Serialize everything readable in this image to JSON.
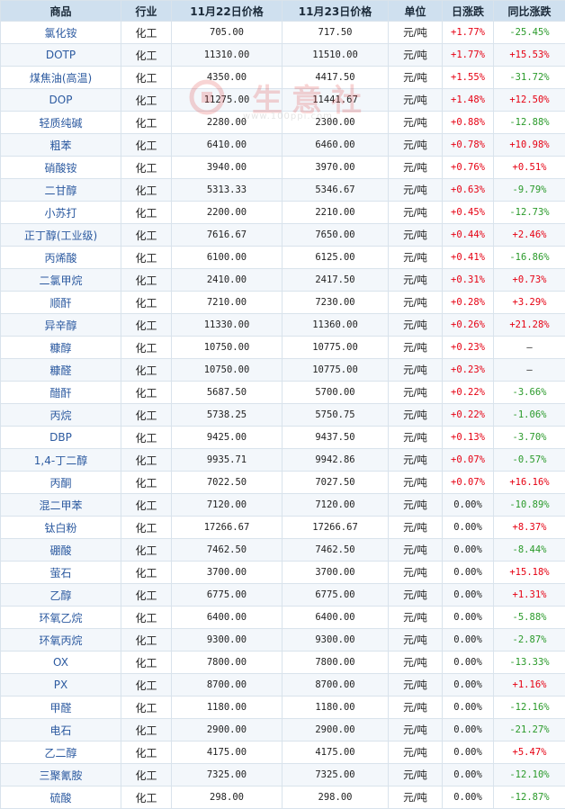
{
  "header": {
    "product": "商品",
    "industry": "行业",
    "price_prev": "11月22日价格",
    "price_curr": "11月23日价格",
    "unit": "单位",
    "daily_change": "日涨跌",
    "yoy_change": "同比涨跌"
  },
  "watermark": {
    "text": "生意社",
    "url": "www.100ppi.com"
  },
  "colors": {
    "up": "#e60012",
    "down": "#2a9a2a",
    "header_bg": "#cfe0ef",
    "name_link": "#2c5aa0"
  },
  "rows": [
    {
      "name": "氯化铵",
      "industry": "化工",
      "p1": "705.00",
      "p2": "717.50",
      "unit": "元/吨",
      "day": "+1.77%",
      "yoy": "-25.45%"
    },
    {
      "name": "DOTP",
      "industry": "化工",
      "p1": "11310.00",
      "p2": "11510.00",
      "unit": "元/吨",
      "day": "+1.77%",
      "yoy": "+15.53%"
    },
    {
      "name": "煤焦油(高温)",
      "industry": "化工",
      "p1": "4350.00",
      "p2": "4417.50",
      "unit": "元/吨",
      "day": "+1.55%",
      "yoy": "-31.72%"
    },
    {
      "name": "DOP",
      "industry": "化工",
      "p1": "11275.00",
      "p2": "11441.67",
      "unit": "元/吨",
      "day": "+1.48%",
      "yoy": "+12.50%"
    },
    {
      "name": "轻质纯碱",
      "industry": "化工",
      "p1": "2280.00",
      "p2": "2300.00",
      "unit": "元/吨",
      "day": "+0.88%",
      "yoy": "-12.88%"
    },
    {
      "name": "粗苯",
      "industry": "化工",
      "p1": "6410.00",
      "p2": "6460.00",
      "unit": "元/吨",
      "day": "+0.78%",
      "yoy": "+10.98%"
    },
    {
      "name": "硝酸铵",
      "industry": "化工",
      "p1": "3940.00",
      "p2": "3970.00",
      "unit": "元/吨",
      "day": "+0.76%",
      "yoy": "+0.51%"
    },
    {
      "name": "二甘醇",
      "industry": "化工",
      "p1": "5313.33",
      "p2": "5346.67",
      "unit": "元/吨",
      "day": "+0.63%",
      "yoy": "-9.79%"
    },
    {
      "name": "小苏打",
      "industry": "化工",
      "p1": "2200.00",
      "p2": "2210.00",
      "unit": "元/吨",
      "day": "+0.45%",
      "yoy": "-12.73%"
    },
    {
      "name": "正丁醇(工业级)",
      "industry": "化工",
      "p1": "7616.67",
      "p2": "7650.00",
      "unit": "元/吨",
      "day": "+0.44%",
      "yoy": "+2.46%"
    },
    {
      "name": "丙烯酸",
      "industry": "化工",
      "p1": "6100.00",
      "p2": "6125.00",
      "unit": "元/吨",
      "day": "+0.41%",
      "yoy": "-16.86%"
    },
    {
      "name": "二氯甲烷",
      "industry": "化工",
      "p1": "2410.00",
      "p2": "2417.50",
      "unit": "元/吨",
      "day": "+0.31%",
      "yoy": "+0.73%"
    },
    {
      "name": "顺酐",
      "industry": "化工",
      "p1": "7210.00",
      "p2": "7230.00",
      "unit": "元/吨",
      "day": "+0.28%",
      "yoy": "+3.29%"
    },
    {
      "name": "异辛醇",
      "industry": "化工",
      "p1": "11330.00",
      "p2": "11360.00",
      "unit": "元/吨",
      "day": "+0.26%",
      "yoy": "+21.28%"
    },
    {
      "name": "糠醇",
      "industry": "化工",
      "p1": "10750.00",
      "p2": "10775.00",
      "unit": "元/吨",
      "day": "+0.23%",
      "yoy": "—"
    },
    {
      "name": "糠醛",
      "industry": "化工",
      "p1": "10750.00",
      "p2": "10775.00",
      "unit": "元/吨",
      "day": "+0.23%",
      "yoy": "—"
    },
    {
      "name": "醋酐",
      "industry": "化工",
      "p1": "5687.50",
      "p2": "5700.00",
      "unit": "元/吨",
      "day": "+0.22%",
      "yoy": "-3.66%"
    },
    {
      "name": "丙烷",
      "industry": "化工",
      "p1": "5738.25",
      "p2": "5750.75",
      "unit": "元/吨",
      "day": "+0.22%",
      "yoy": "-1.06%"
    },
    {
      "name": "DBP",
      "industry": "化工",
      "p1": "9425.00",
      "p2": "9437.50",
      "unit": "元/吨",
      "day": "+0.13%",
      "yoy": "-3.70%"
    },
    {
      "name": "1,4-丁二醇",
      "industry": "化工",
      "p1": "9935.71",
      "p2": "9942.86",
      "unit": "元/吨",
      "day": "+0.07%",
      "yoy": "-0.57%"
    },
    {
      "name": "丙酮",
      "industry": "化工",
      "p1": "7022.50",
      "p2": "7027.50",
      "unit": "元/吨",
      "day": "+0.07%",
      "yoy": "+16.16%"
    },
    {
      "name": "混二甲苯",
      "industry": "化工",
      "p1": "7120.00",
      "p2": "7120.00",
      "unit": "元/吨",
      "day": "0.00%",
      "yoy": "-10.89%"
    },
    {
      "name": "钛白粉",
      "industry": "化工",
      "p1": "17266.67",
      "p2": "17266.67",
      "unit": "元/吨",
      "day": "0.00%",
      "yoy": "+8.37%"
    },
    {
      "name": "硼酸",
      "industry": "化工",
      "p1": "7462.50",
      "p2": "7462.50",
      "unit": "元/吨",
      "day": "0.00%",
      "yoy": "-8.44%"
    },
    {
      "name": "萤石",
      "industry": "化工",
      "p1": "3700.00",
      "p2": "3700.00",
      "unit": "元/吨",
      "day": "0.00%",
      "yoy": "+15.18%"
    },
    {
      "name": "乙醇",
      "industry": "化工",
      "p1": "6775.00",
      "p2": "6775.00",
      "unit": "元/吨",
      "day": "0.00%",
      "yoy": "+1.31%"
    },
    {
      "name": "环氧乙烷",
      "industry": "化工",
      "p1": "6400.00",
      "p2": "6400.00",
      "unit": "元/吨",
      "day": "0.00%",
      "yoy": "-5.88%"
    },
    {
      "name": "环氧丙烷",
      "industry": "化工",
      "p1": "9300.00",
      "p2": "9300.00",
      "unit": "元/吨",
      "day": "0.00%",
      "yoy": "-2.87%"
    },
    {
      "name": "OX",
      "industry": "化工",
      "p1": "7800.00",
      "p2": "7800.00",
      "unit": "元/吨",
      "day": "0.00%",
      "yoy": "-13.33%"
    },
    {
      "name": "PX",
      "industry": "化工",
      "p1": "8700.00",
      "p2": "8700.00",
      "unit": "元/吨",
      "day": "0.00%",
      "yoy": "+1.16%"
    },
    {
      "name": "甲醛",
      "industry": "化工",
      "p1": "1180.00",
      "p2": "1180.00",
      "unit": "元/吨",
      "day": "0.00%",
      "yoy": "-12.16%"
    },
    {
      "name": "电石",
      "industry": "化工",
      "p1": "2900.00",
      "p2": "2900.00",
      "unit": "元/吨",
      "day": "0.00%",
      "yoy": "-21.27%"
    },
    {
      "name": "乙二醇",
      "industry": "化工",
      "p1": "4175.00",
      "p2": "4175.00",
      "unit": "元/吨",
      "day": "0.00%",
      "yoy": "+5.47%"
    },
    {
      "name": "三聚氰胺",
      "industry": "化工",
      "p1": "7325.00",
      "p2": "7325.00",
      "unit": "元/吨",
      "day": "0.00%",
      "yoy": "-12.10%"
    },
    {
      "name": "硫酸",
      "industry": "化工",
      "p1": "298.00",
      "p2": "298.00",
      "unit": "元/吨",
      "day": "0.00%",
      "yoy": "-12.87%"
    }
  ]
}
